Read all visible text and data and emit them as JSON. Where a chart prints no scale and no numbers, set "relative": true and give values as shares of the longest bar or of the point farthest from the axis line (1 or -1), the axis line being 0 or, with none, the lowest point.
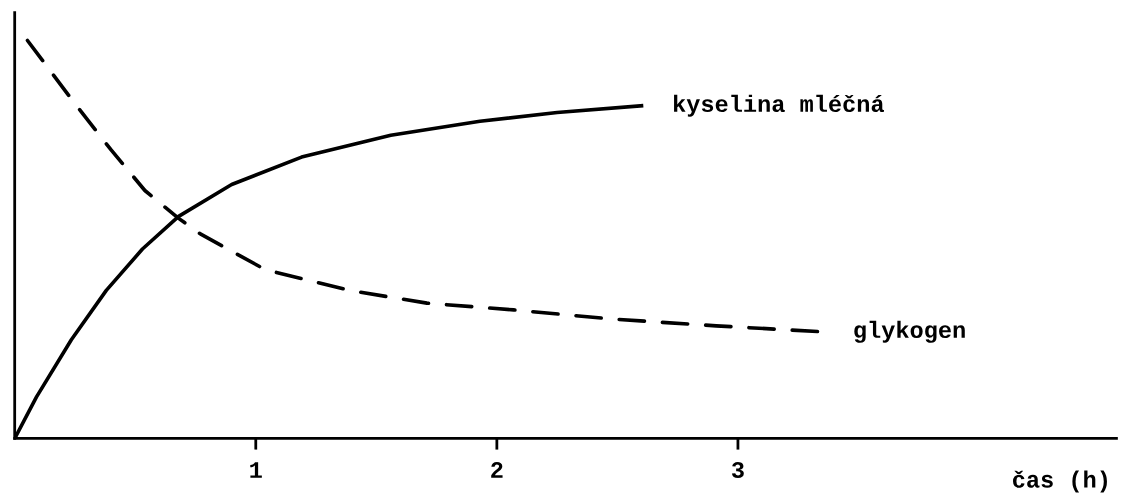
{
  "chart_data": {
    "type": "line",
    "relative": true,
    "xlabel": "čas (h)",
    "xlim": [
      0,
      4.57
    ],
    "xticks": [
      1,
      2,
      3
    ],
    "tick_labels": "x",
    "grid": false,
    "legend": false,
    "marker": "none",
    "series": [
      {
        "name": "kyselina mléčná",
        "color": "#000000",
        "line_style": "solid",
        "x": [
          0,
          0.09,
          0.235,
          0.38,
          0.53,
          0.68,
          0.9,
          1.19,
          1.56,
          1.93,
          2.25,
          2.6
        ],
        "values": [
          0,
          0.104,
          0.248,
          0.372,
          0.476,
          0.558,
          0.638,
          0.707,
          0.762,
          0.797,
          0.819,
          0.836
        ]
      },
      {
        "name": "glykogen",
        "color": "#000000",
        "line_style": "dashed",
        "x": [
          0.053,
          0.25,
          0.4,
          0.54,
          0.68,
          0.77,
          1.04,
          1.39,
          1.71,
          2.07,
          2.48,
          2.91,
          3.35
        ],
        "values": [
          1.0,
          0.841,
          0.725,
          0.623,
          0.553,
          0.514,
          0.424,
          0.372,
          0.34,
          0.323,
          0.3,
          0.283,
          0.268
        ]
      }
    ]
  }
}
